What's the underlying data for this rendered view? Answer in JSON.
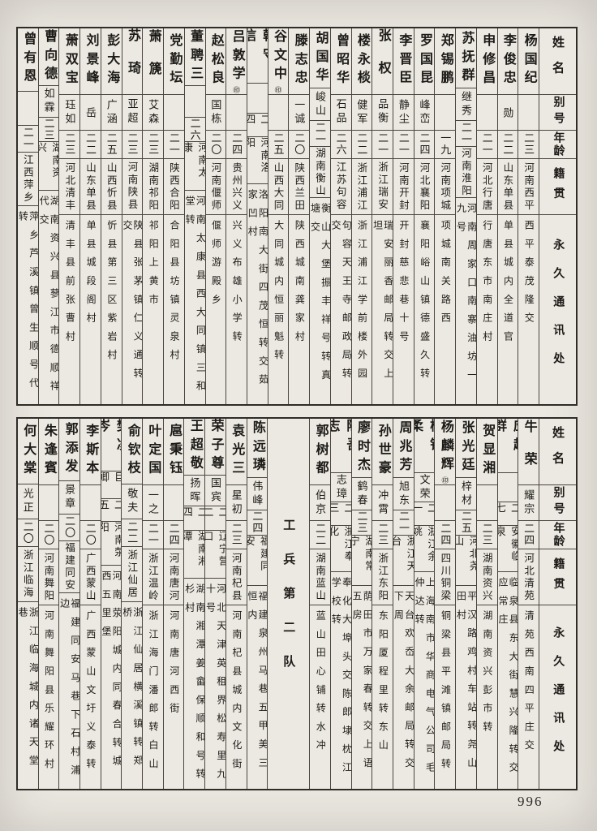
{
  "page": {
    "number": "996"
  },
  "header_labels": {
    "name": "姓名",
    "alias": "别号",
    "age": "年龄",
    "origin": "籍贯",
    "address": "永久通讯处"
  },
  "tables": [
    {
      "entries": [
        {
          "name": "杨国纪",
          "mark": "",
          "alias": "",
          "age": "二三",
          "origin": "河南西平",
          "address": "西平泰茂隆交"
        },
        {
          "name": "李俊忠",
          "mark": "",
          "alias": "勋",
          "age": "二二",
          "origin": "山东单县",
          "address": "单县城内全道官"
        },
        {
          "name": "申修昌",
          "mark": "",
          "alias": "",
          "age": "二一",
          "origin": "河北行唐",
          "address": "行唐东市南庄村"
        },
        {
          "name": "苏抚群",
          "mark": "",
          "alias": "继秀",
          "age": "二一",
          "origin": "河南淮阳",
          "address": "河南周家口南寨油坊一九号"
        },
        {
          "name": "郑锡鹏",
          "mark": "",
          "alias": "",
          "age": "一九",
          "origin": "河南项城",
          "address": "项城南关路西"
        },
        {
          "name": "罗国昆",
          "mark": "",
          "alias": "峰峦",
          "age": "二四",
          "origin": "河北襄阳",
          "address": "襄阳峪山镇德盛久转"
        },
        {
          "name": "李晋臣",
          "mark": "",
          "alias": "静尘",
          "age": "二一",
          "origin": "河南开封",
          "address": "开封慈悲巷十号"
        },
        {
          "name": "张权",
          "mark": "",
          "alias": "品衡",
          "age": "二一",
          "origin": "浙江瑞安",
          "address": "瑞安丽香邮局转交上坦"
        },
        {
          "name": "楼永棪",
          "mark": "",
          "alias": "健军",
          "age": "二二",
          "origin": "浙江浦江",
          "address": "浙江浦江学前楼外园"
        },
        {
          "name": "曾昭华",
          "mark": "",
          "alias": "石品",
          "age": "二六",
          "origin": "江苏句容",
          "address": "句容天王寺邮政局转交"
        },
        {
          "name": "胡国华",
          "mark": "",
          "alias": "峻山",
          "age": "二一",
          "origin": "湖南衡山",
          "address": "衡山大堡振丰祥号转真塘交"
        },
        {
          "name": "滕志忠",
          "mark": "",
          "alias": "一诚",
          "age": "二〇",
          "origin": "陕西兰田",
          "address": "陕西城南龚家村"
        },
        {
          "name": "谷文中",
          "mark": "㊞",
          "alias": "",
          "age": "二五",
          "origin": "山西大同",
          "address": "大同城内恒丽魁转"
        },
        {
          "name": "韩守信",
          "mark": "",
          "alias": "",
          "age": "二四",
          "origin": "河南洛阳",
          "address": "洛阳南大街四茂恒转交茹家凹村"
        },
        {
          "name": "吕敦学",
          "mark": "㊞",
          "alias": "",
          "age": "二四",
          "origin": "贵州兴义",
          "address": "兴义布雄小学转"
        },
        {
          "name": "赵松良",
          "mark": "",
          "alias": "国栋",
          "age": "二〇",
          "origin": "河南偃师",
          "address": "偃师游殿乡"
        },
        {
          "name": "董聘三",
          "mark": "",
          "alias": "",
          "age": "二六",
          "origin": "河南太康",
          "address": "河南太康县西大同镇三和堂转"
        },
        {
          "name": "党勤坛",
          "mark": "",
          "alias": "",
          "age": "二一",
          "origin": "陕西合阳",
          "address": "合阳县坊镇灵泉村"
        },
        {
          "name": "萧篪",
          "mark": "",
          "alias": "艾森",
          "age": "二三",
          "origin": "湖南祁阳",
          "address": "祁阳上黄市"
        },
        {
          "name": "苏琦",
          "mark": "",
          "alias": "亚超",
          "age": "二三",
          "origin": "河南陕县",
          "address": "陕县张茅镇仁义通转交"
        },
        {
          "name": "彭大海",
          "mark": "",
          "alias": "广涵",
          "age": "二五",
          "origin": "山西忻县",
          "address": "忻县第三区紫岩村"
        },
        {
          "name": "刘景峰",
          "mark": "",
          "alias": "岳",
          "age": "二二",
          "origin": "山东单县",
          "address": "单县城段阁村"
        },
        {
          "name": "萧双宝",
          "mark": "",
          "alias": "珏如",
          "age": "二三",
          "origin": "河北清丰",
          "address": "清丰县前张曹村"
        },
        {
          "name": "曹向德",
          "mark": "",
          "alias": "如霖",
          "age": "二三",
          "origin": "湖南资兴",
          "address": "湖南资兴县蓼江市德顺祥代交"
        },
        {
          "name": "曾有恩",
          "mark": "",
          "alias": "",
          "age": "二一",
          "origin": "江西萍乡",
          "address": "萍乡芦溪镇曾生顺号代转"
        }
      ]
    },
    {
      "entries": [
        {
          "name": "牛荣",
          "mark": "",
          "alias": "耀宗",
          "age": "二四",
          "origin": "河北清苑",
          "address": "清苑西南四平庄交"
        },
        {
          "name": "应超群",
          "mark": "",
          "alias": "",
          "age": "二七",
          "origin": "安徽临泉",
          "address": "临泉县东大街慧兴隆转交应常庄"
        },
        {
          "name": "贺显湘",
          "mark": "",
          "alias": "",
          "age": "二三",
          "origin": "湖南资兴",
          "address": "湖南资兴彭市转"
        },
        {
          "name": "张光廷",
          "mark": "",
          "alias": "梓材",
          "age": "二五",
          "origin": "河北尧山",
          "address": "平汉路鸡村车站转尧山田村"
        },
        {
          "name": "杨麟辉",
          "mark": "㊞",
          "alias": "",
          "age": "二四",
          "origin": "四川铜梁",
          "address": "铜梁县平滩镇邮局转"
        },
        {
          "name": "杨铁柔",
          "mark": "",
          "alias": "文荣",
          "age": "二一",
          "origin": "浙江余姚",
          "address": "上海南市华商电气公司毛仲达转"
        },
        {
          "name": "周兆芳",
          "mark": "",
          "alias": "旭东",
          "age": "二一",
          "origin": "浙江天台",
          "address": "天台欢岙大余邮局转交下周"
        },
        {
          "name": "孙世豪",
          "mark": "",
          "alias": "冲霄",
          "age": "二三",
          "origin": "浙江东阳",
          "address": "东阳厦程里转东山"
        },
        {
          "name": "廖时杰",
          "mark": "",
          "alias": "鹤春",
          "age": "二三",
          "origin": "湖南常宁",
          "address": "荫田市万家春转交上语五房"
        },
        {
          "name": "陈吾志",
          "mark": "",
          "alias": "志璋",
          "age": "二三",
          "origin": "浙江奉化",
          "address": "奉化大埠头交陈郎埭枕江学校转"
        },
        {
          "name": "郭树都",
          "mark": "",
          "alias": "伯京",
          "age": "二二",
          "origin": "湖南蓝山",
          "address": "蓝山田心铺转水冲"
        },
        {
          "type": "unit",
          "label": "工兵第二队"
        },
        {
          "name": "陈远璘",
          "mark": "",
          "alias": "伟峰",
          "age": "二四",
          "origin": "福建同安",
          "address": "福建泉州马巷五甲美三恒内"
        },
        {
          "name": "袁光三",
          "mark": "",
          "alias": "星初",
          "age": "二三",
          "origin": "河南杞县",
          "address": "河南杞县城内文化街"
        },
        {
          "name": "荣子尊",
          "mark": "",
          "alias": "国宾",
          "age": "二二",
          "origin": "辽宁营口",
          "address": "河北天津英租界松寿里九十号"
        },
        {
          "name": "王超敬",
          "mark": "",
          "alias": "扬晖",
          "age": "二四",
          "origin": "湖南湘潭",
          "address": "湖南湘潭姜畲保顺和号转杉村"
        },
        {
          "name": "扈秉钰",
          "mark": "",
          "alias": "",
          "age": "二四",
          "origin": "河南唐河",
          "address": "河南唐河西街"
        },
        {
          "name": "叶定国",
          "mark": "",
          "alias": "一之",
          "age": "二一",
          "origin": "浙江温岭",
          "address": "浙江海门潘郎转白山"
        },
        {
          "name": "俞钦枝",
          "mark": "",
          "alias": "敬夫",
          "age": "二二",
          "origin": "浙江仙居",
          "address": "浙江仙居横溪镇转郑桥"
        },
        {
          "name": "樊凌岑",
          "mark": "",
          "alias": "巨卿",
          "age": "二五",
          "origin": "河南荥阳",
          "address": "河南荥阳城内同春合转城西五里堡"
        },
        {
          "name": "李斯本",
          "mark": "",
          "alias": "",
          "age": "二〇",
          "origin": "广西蒙山",
          "address": "广西蒙山文圩义泰转"
        },
        {
          "name": "郭添发",
          "mark": "",
          "alias": "景章",
          "age": "二〇",
          "origin": "福建同安",
          "address": "福建同安马巷下石村浦边"
        },
        {
          "name": "朱逢賓",
          "mark": "",
          "alias": "",
          "age": "二〇",
          "origin": "河南舞阳",
          "address": "河南舞阳县乐耀环村"
        },
        {
          "name": "何大棠",
          "mark": "",
          "alias": "光正",
          "age": "二〇",
          "origin": "浙江临海",
          "address": "浙江临海城内诸天堂巷"
        }
      ]
    }
  ]
}
